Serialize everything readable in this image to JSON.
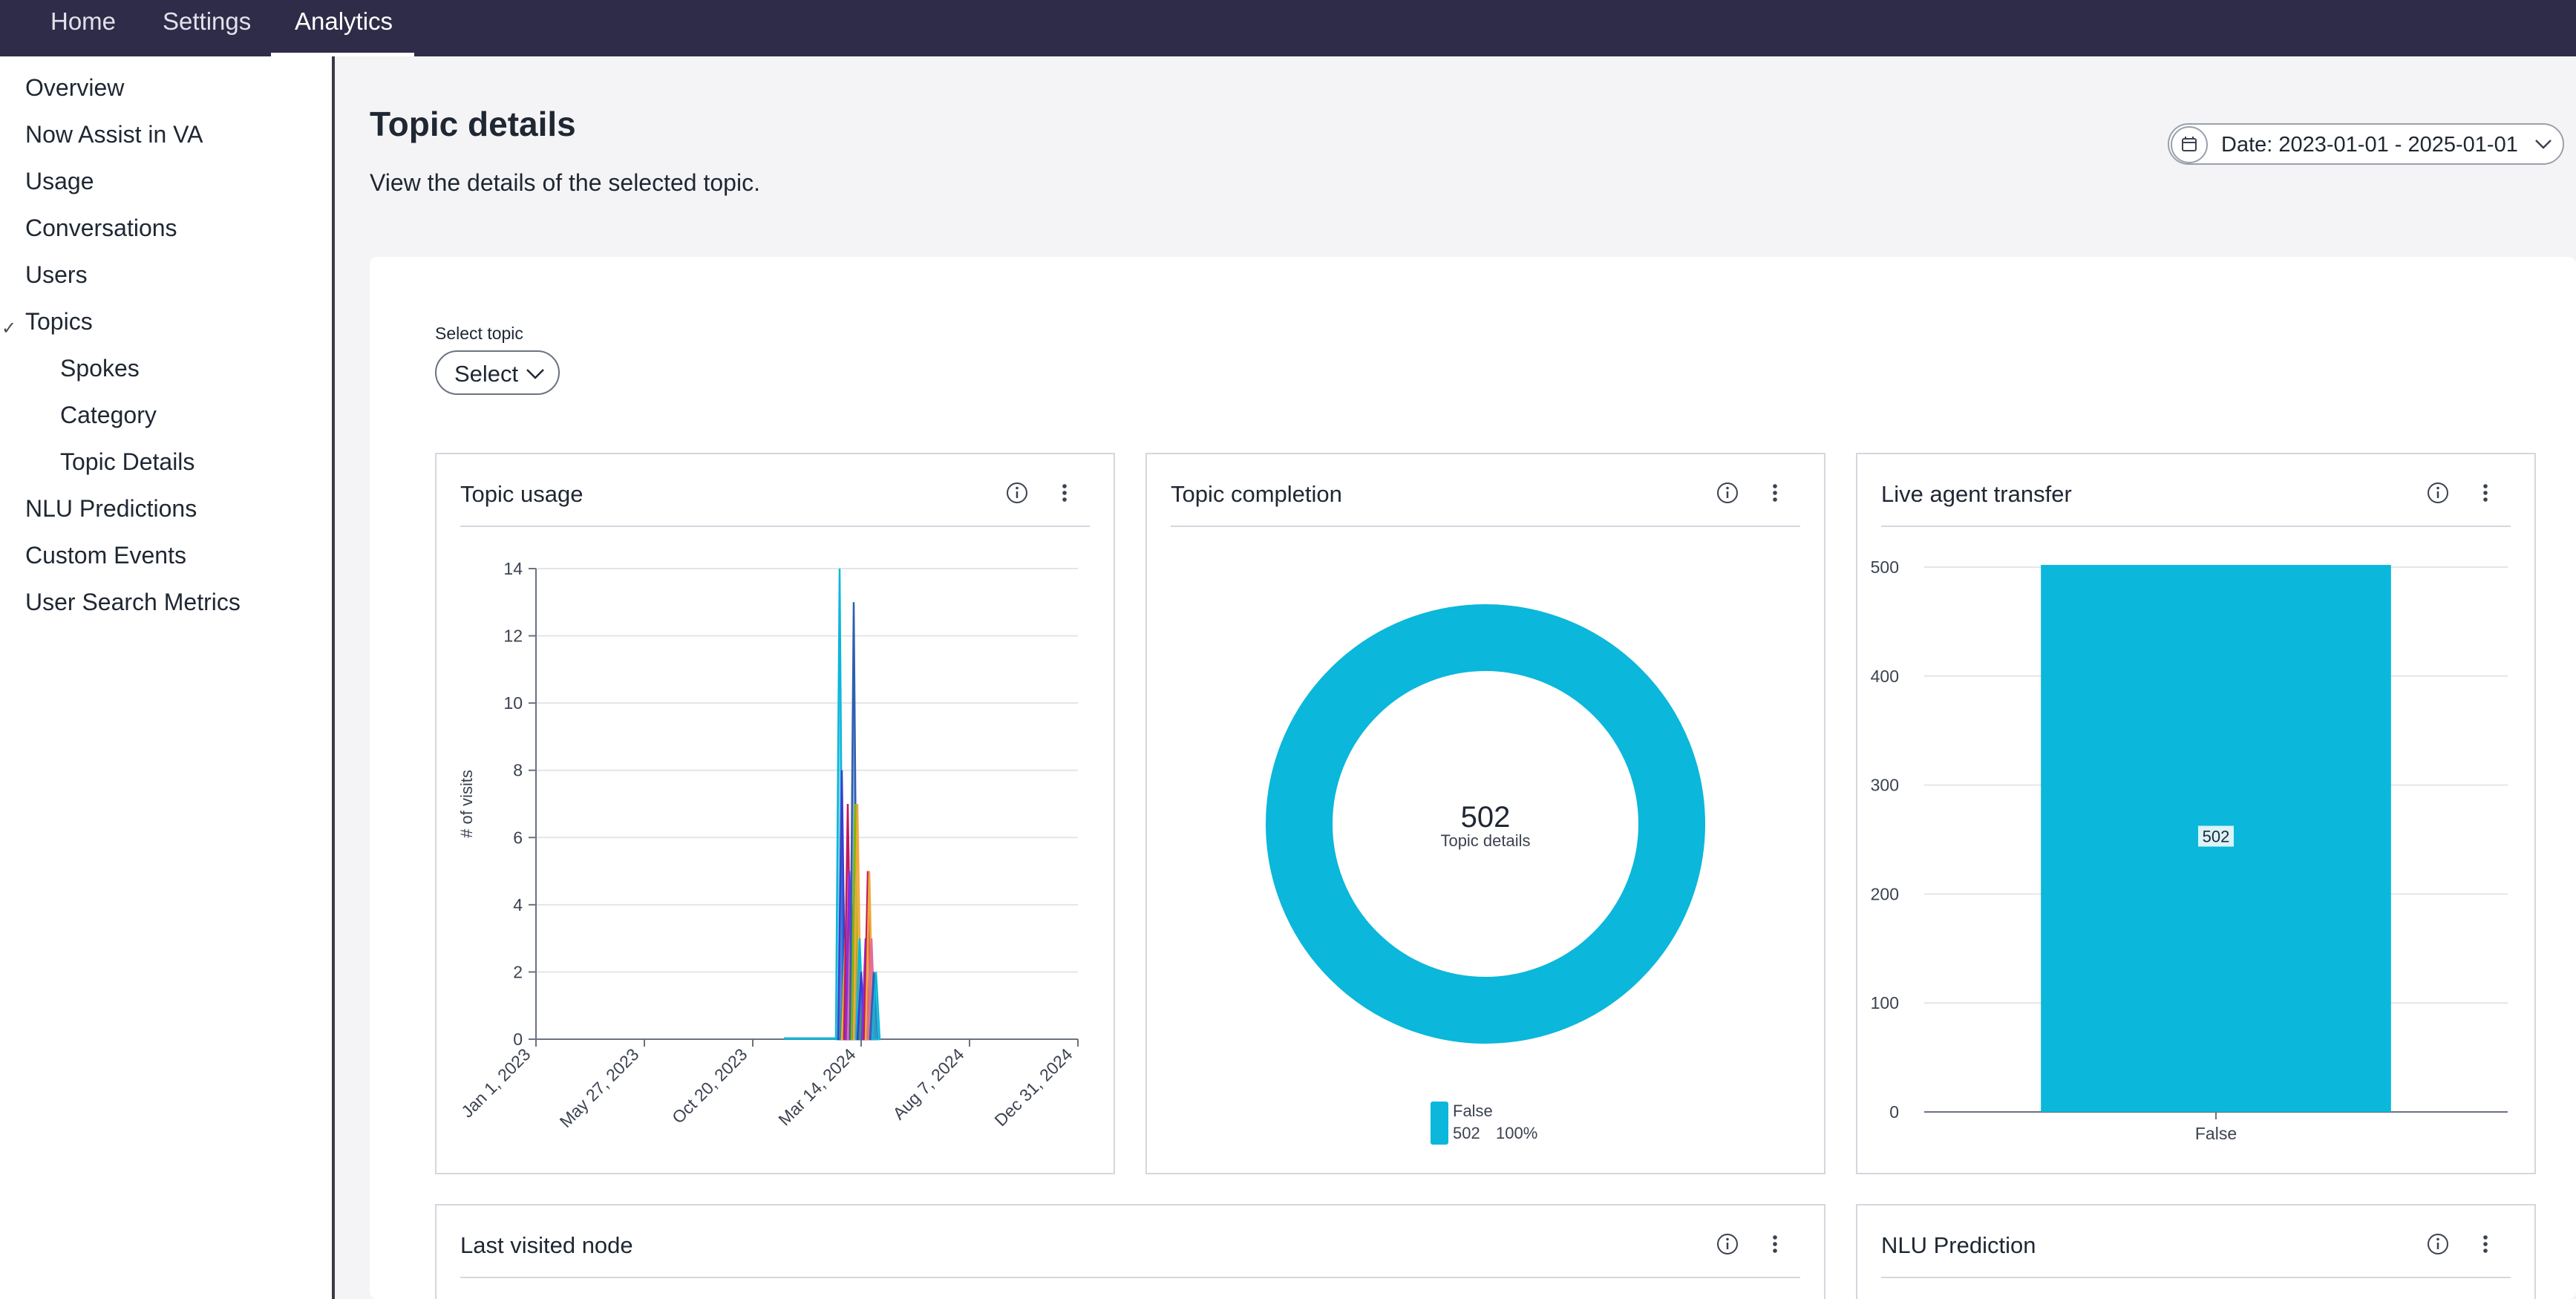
{
  "nav": {
    "tabs": [
      {
        "label": "Home"
      },
      {
        "label": "Settings"
      },
      {
        "label": "Analytics"
      }
    ]
  },
  "sidebar": {
    "items": [
      {
        "label": "Overview"
      },
      {
        "label": "Now Assist in VA"
      },
      {
        "label": "Usage"
      },
      {
        "label": "Conversations"
      },
      {
        "label": "Users"
      },
      {
        "label": "Topics"
      },
      {
        "label": "Spokes"
      },
      {
        "label": "Category"
      },
      {
        "label": "Topic Details"
      },
      {
        "label": "NLU Predictions"
      },
      {
        "label": "Custom Events"
      },
      {
        "label": "User Search Metrics"
      }
    ],
    "expanded_marker": "✓"
  },
  "header": {
    "title": "Topic details",
    "subtitle": "View the details of the selected topic.",
    "date_filter": "Date: 2023-01-01 - 2025-01-01"
  },
  "topic_select": {
    "label": "Select topic",
    "value": "Select"
  },
  "panels": {
    "topic_usage": {
      "title": "Topic usage"
    },
    "topic_completion": {
      "title": "Topic completion"
    },
    "live_agent_transfer": {
      "title": "Live agent transfer"
    },
    "last_visited_node": {
      "title": "Last visited node"
    },
    "nlu_prediction": {
      "title": "NLU Prediction"
    }
  },
  "colors": {
    "nav_bg": "#2e2c48",
    "accent": "#0bb7da"
  },
  "chart_data": [
    {
      "type": "line",
      "name": "topic_usage",
      "ylabel": "# of visits",
      "ylim": [
        0,
        14
      ],
      "yticks": [
        0,
        2,
        4,
        6,
        8,
        10,
        12,
        14
      ],
      "xlim": [
        "2023-01-01",
        "2024-12-31"
      ],
      "xticks": [
        "Jan 1, 2023",
        "May 27, 2023",
        "Oct 20, 2023",
        "Mar 14, 2024",
        "Aug 7, 2024",
        "Dec 31, 2024"
      ],
      "xtick_dates": [
        "2023-01-01",
        "2023-05-27",
        "2023-10-20",
        "2024-03-14",
        "2024-08-07",
        "2024-12-31"
      ],
      "baseline_segment": [
        "2023-12-01",
        "2024-02-12"
      ],
      "spikes": [
        {
          "x": "2024-02-14",
          "y": 14,
          "color": "#0bb7da"
        },
        {
          "x": "2024-02-17",
          "y": 8,
          "color": "#3a3fcf"
        },
        {
          "x": "2024-02-20",
          "y": 2,
          "color": "#22a06b"
        },
        {
          "x": "2024-02-22",
          "y": 3,
          "color": "#f2a83b"
        },
        {
          "x": "2024-02-25",
          "y": 7,
          "color": "#c2185b"
        },
        {
          "x": "2024-02-27",
          "y": 5,
          "color": "#8a2be2"
        },
        {
          "x": "2024-03-01",
          "y": 4,
          "color": "#e66b9a"
        },
        {
          "x": "2024-03-04",
          "y": 13,
          "color": "#2f5fb0"
        },
        {
          "x": "2024-03-06",
          "y": 7,
          "color": "#7fb800"
        },
        {
          "x": "2024-03-09",
          "y": 7,
          "color": "#f2a83b"
        },
        {
          "x": "2024-03-12",
          "y": 3,
          "color": "#0bb7da"
        },
        {
          "x": "2024-03-14",
          "y": 2,
          "color": "#3a3fcf"
        },
        {
          "x": "2024-03-17",
          "y": 1,
          "color": "#22a06b"
        },
        {
          "x": "2024-03-20",
          "y": 3,
          "color": "#8a2be2"
        },
        {
          "x": "2024-03-23",
          "y": 5,
          "color": "#c2185b"
        },
        {
          "x": "2024-03-25",
          "y": 5,
          "color": "#f2a83b"
        },
        {
          "x": "2024-03-28",
          "y": 3,
          "color": "#e66b9a"
        },
        {
          "x": "2024-03-31",
          "y": 2,
          "color": "#2f5fb0"
        },
        {
          "x": "2024-04-03",
          "y": 2,
          "color": "#0bb7da"
        }
      ]
    },
    {
      "type": "pie",
      "name": "topic_completion",
      "center_value": "502",
      "center_label": "Topic details",
      "slices": [
        {
          "label": "False",
          "value": 502,
          "percent": "100%",
          "color": "#0bb7da"
        }
      ]
    },
    {
      "type": "bar",
      "name": "live_agent_transfer",
      "categories": [
        "False"
      ],
      "values": [
        502
      ],
      "ylim": [
        0,
        500
      ],
      "yticks": [
        0,
        100,
        200,
        300,
        400,
        500
      ],
      "color": "#0bb7da"
    }
  ]
}
